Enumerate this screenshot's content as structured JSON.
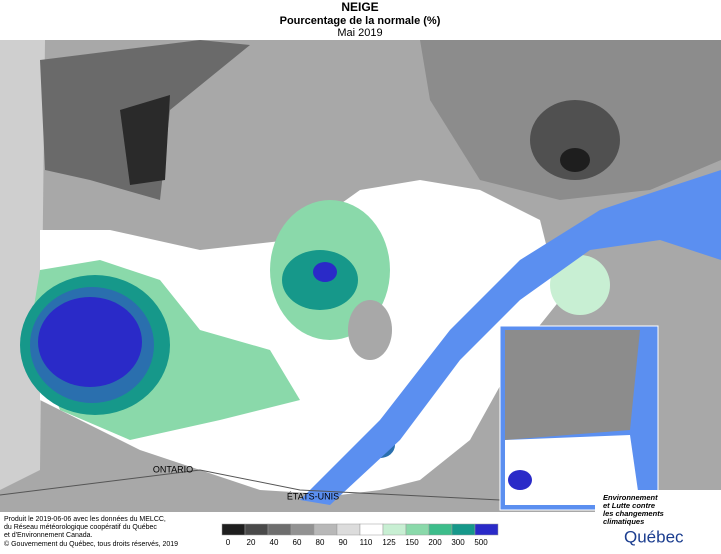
{
  "header": {
    "title": "NEIGE",
    "subtitle": "Pourcentage de la normale (%)",
    "period": "Mai 2019"
  },
  "map": {
    "labels": [
      "ONTARIO",
      "ÉTATS-UNIS"
    ]
  },
  "legend": {
    "ticks": [
      0,
      20,
      40,
      60,
      80,
      90,
      110,
      125,
      150,
      200,
      300,
      500
    ],
    "colors": [
      "#1e1e1e",
      "#4a4a4a",
      "#6e6e6e",
      "#929292",
      "#b8b8b8",
      "#dcdcdc",
      "#ffffff",
      "#c8efd3",
      "#8ad9aa",
      "#3dbd8b",
      "#16988a",
      "#2a2ac8"
    ]
  },
  "footer": {
    "credits": [
      "Produit le 2019-06-06 avec les données du MELCC,",
      "du Réseau météorologique coopératif du Québec",
      "et d'Environnement Canada."
    ],
    "copyright": "© Gouvernement du Québec, tous droits réservés, 2019"
  },
  "logo": {
    "lines": [
      "Environnement",
      "et Lutte contre",
      "les changements",
      "climatiques"
    ],
    "name": "Québec"
  }
}
